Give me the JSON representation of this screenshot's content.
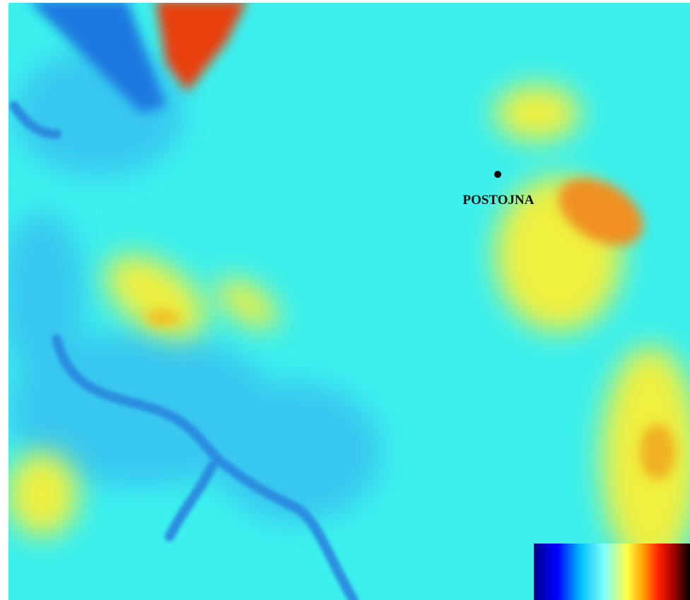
{
  "map": {
    "place": {
      "label": "POSTOJNA"
    }
  }
}
